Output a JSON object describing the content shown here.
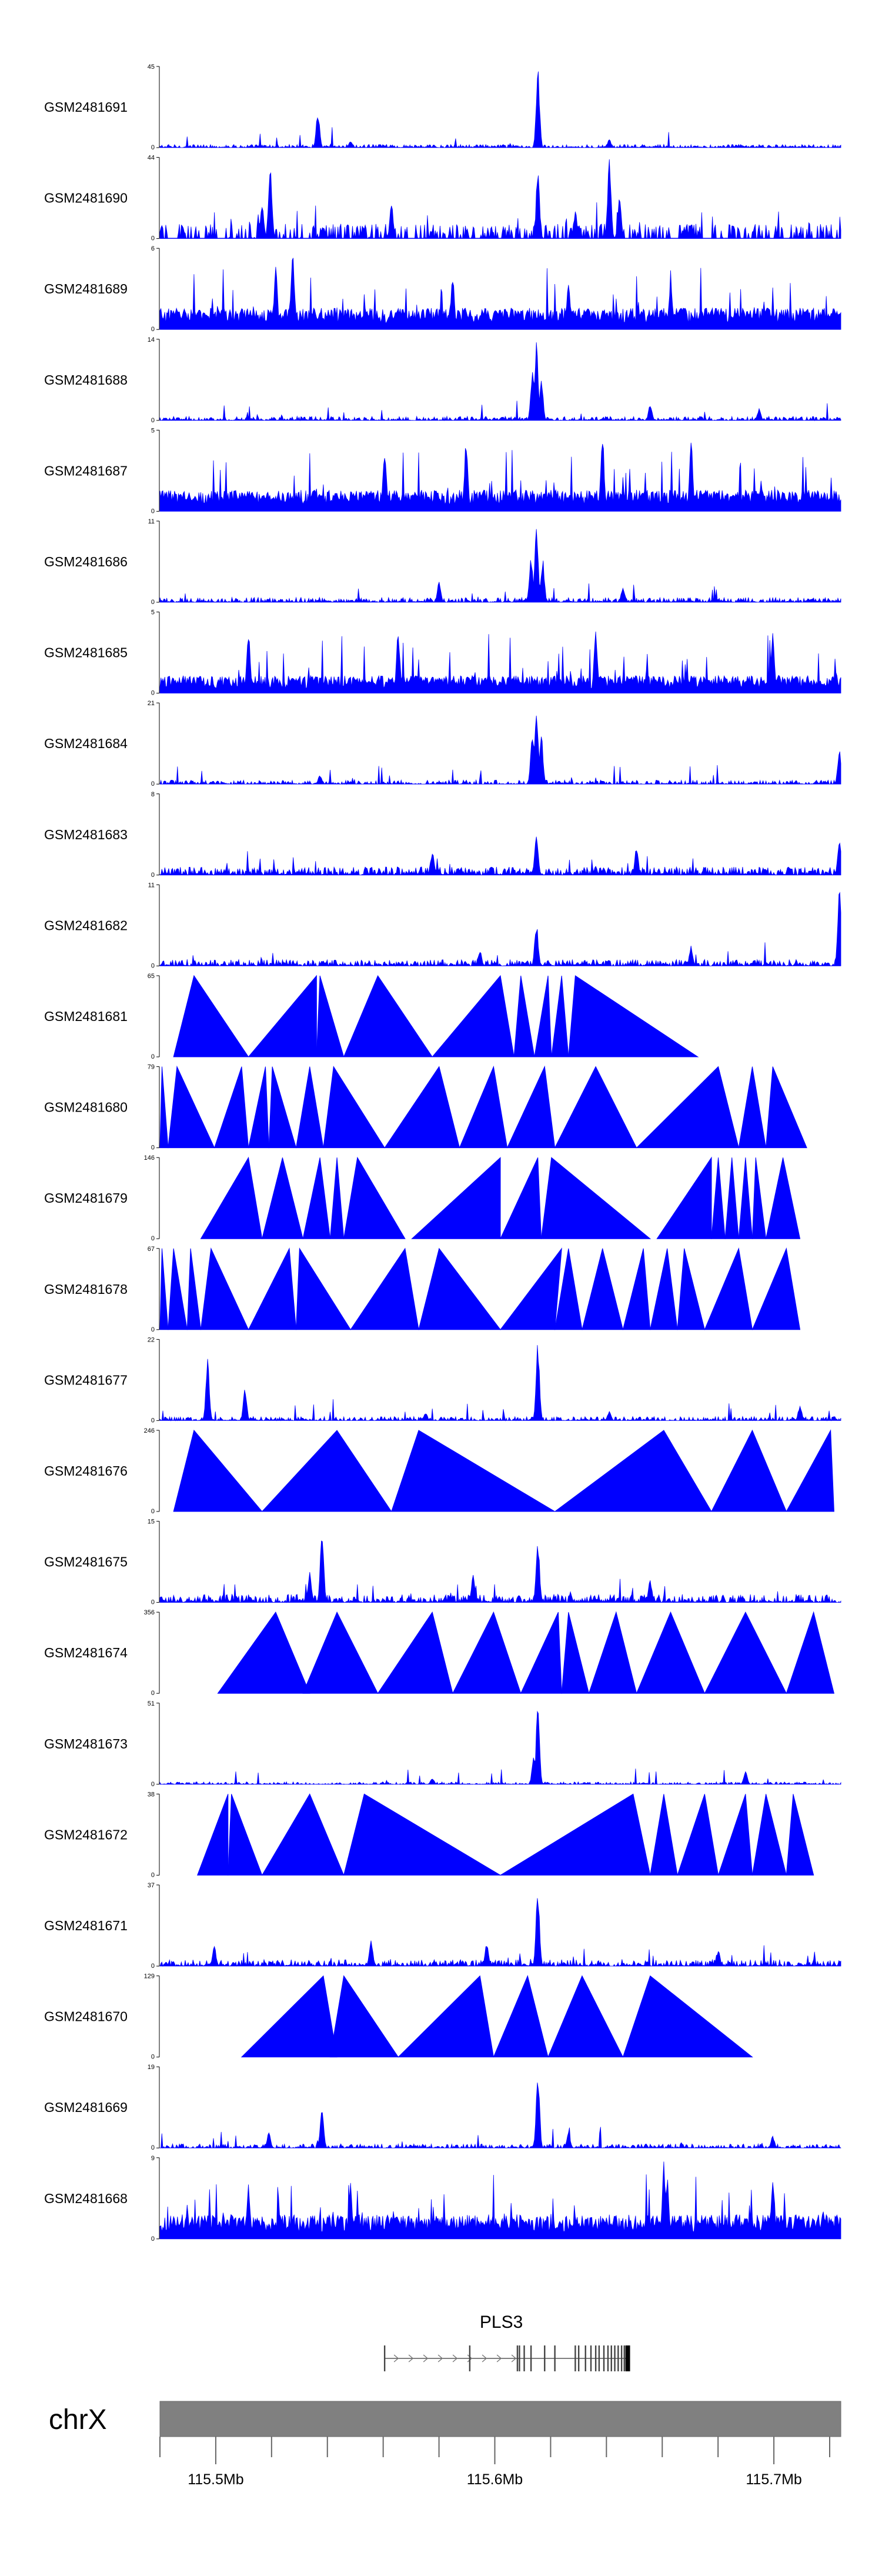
{
  "chart_data": {
    "type": "area",
    "title": "",
    "chromosome": "chrX",
    "x_range_mb": [
      115.48,
      115.724
    ],
    "track_color": "#0000ff",
    "tracks": [
      {
        "name": "GSM2481691",
        "ymin": "0",
        "ymax": "45",
        "style": "signal",
        "baseline": 0.04,
        "variability": 1.2,
        "peaks": [
          [
            0.232,
            0.45
          ],
          [
            0.555,
            1.0
          ],
          [
            0.28,
            0.08
          ],
          [
            0.66,
            0.1
          ]
        ]
      },
      {
        "name": "GSM2481690",
        "ymin": "0",
        "ymax": "44",
        "style": "sparse",
        "baseline": 0.18,
        "variability": 0.9,
        "peaks": [
          [
            0.162,
            0.95
          ],
          [
            0.15,
            0.5
          ],
          [
            0.555,
            0.85
          ],
          [
            0.66,
            0.98
          ],
          [
            0.675,
            0.55
          ],
          [
            0.34,
            0.45
          ],
          [
            0.61,
            0.35
          ],
          [
            0.78,
            0.2
          ]
        ]
      },
      {
        "name": "GSM2481689",
        "ymin": "0",
        "ymax": "6",
        "style": "dense",
        "baseline": 0.22,
        "variability": 1.6,
        "peaks": [
          [
            0.195,
            1.0
          ],
          [
            0.17,
            0.8
          ],
          [
            0.43,
            0.7
          ],
          [
            0.6,
            0.7
          ],
          [
            0.75,
            0.65
          ]
        ]
      },
      {
        "name": "GSM2481688",
        "ymin": "0",
        "ymax": "14",
        "style": "signal",
        "baseline": 0.05,
        "variability": 1.1,
        "peaks": [
          [
            0.553,
            1.0
          ],
          [
            0.547,
            0.6
          ],
          [
            0.56,
            0.55
          ],
          [
            0.72,
            0.2
          ],
          [
            0.88,
            0.15
          ]
        ]
      },
      {
        "name": "GSM2481687",
        "ymin": "0",
        "ymax": "5",
        "style": "dense",
        "baseline": 0.22,
        "variability": 1.7,
        "peaks": [
          [
            0.45,
            0.95
          ],
          [
            0.65,
            0.95
          ],
          [
            0.78,
            0.9
          ],
          [
            0.33,
            0.8
          ]
        ]
      },
      {
        "name": "GSM2481686",
        "ymin": "0",
        "ymax": "11",
        "style": "signal",
        "baseline": 0.06,
        "variability": 1.2,
        "peaks": [
          [
            0.553,
            1.0
          ],
          [
            0.545,
            0.6
          ],
          [
            0.562,
            0.55
          ],
          [
            0.41,
            0.25
          ],
          [
            0.68,
            0.2
          ]
        ]
      },
      {
        "name": "GSM2481685",
        "ymin": "0",
        "ymax": "5",
        "style": "dense",
        "baseline": 0.18,
        "variability": 1.6,
        "peaks": [
          [
            0.13,
            0.85
          ],
          [
            0.35,
            0.8
          ],
          [
            0.64,
            0.85
          ],
          [
            0.9,
            0.75
          ]
        ]
      },
      {
        "name": "GSM2481684",
        "ymin": "0",
        "ymax": "21",
        "style": "signal",
        "baseline": 0.05,
        "variability": 1.0,
        "peaks": [
          [
            0.553,
            1.0
          ],
          [
            0.547,
            0.7
          ],
          [
            0.56,
            0.65
          ],
          [
            0.235,
            0.12
          ],
          [
            0.998,
            0.45
          ]
        ]
      },
      {
        "name": "GSM2481683",
        "ymin": "0",
        "ymax": "8",
        "style": "signal",
        "baseline": 0.1,
        "variability": 1.4,
        "peaks": [
          [
            0.553,
            0.5
          ],
          [
            0.998,
            0.45
          ],
          [
            0.7,
            0.35
          ],
          [
            0.4,
            0.3
          ]
        ]
      },
      {
        "name": "GSM2481682",
        "ymin": "0",
        "ymax": "11",
        "style": "signal",
        "baseline": 0.08,
        "variability": 1.3,
        "peaks": [
          [
            0.553,
            0.55
          ],
          [
            0.998,
            0.95
          ],
          [
            0.47,
            0.2
          ],
          [
            0.78,
            0.25
          ]
        ]
      },
      {
        "name": "GSM2481681",
        "ymin": "0",
        "ymax": "65",
        "style": "triangles",
        "peaks": [
          [
            0.02,
            0.13,
            0.05
          ],
          [
            0.13,
            0.23,
            0.23
          ],
          [
            0.23,
            0.27,
            0.235
          ],
          [
            0.27,
            0.4,
            0.32
          ],
          [
            0.4,
            0.52,
            0.5
          ],
          [
            0.52,
            0.55,
            0.53
          ],
          [
            0.55,
            0.575,
            0.57
          ],
          [
            0.575,
            0.6,
            0.59
          ],
          [
            0.6,
            0.79,
            0.61
          ]
        ]
      },
      {
        "name": "GSM2481680",
        "ymin": "0",
        "ymax": "79",
        "style": "triangles",
        "peaks": [
          [
            0.0,
            0.012,
            0.003
          ],
          [
            0.012,
            0.08,
            0.025
          ],
          [
            0.08,
            0.13,
            0.12
          ],
          [
            0.13,
            0.16,
            0.155
          ],
          [
            0.16,
            0.2,
            0.165
          ],
          [
            0.2,
            0.24,
            0.22
          ],
          [
            0.24,
            0.33,
            0.255
          ],
          [
            0.33,
            0.44,
            0.41
          ],
          [
            0.44,
            0.51,
            0.49
          ],
          [
            0.51,
            0.58,
            0.565
          ],
          [
            0.58,
            0.7,
            0.64
          ],
          [
            0.7,
            0.85,
            0.82
          ],
          [
            0.85,
            0.89,
            0.87
          ],
          [
            0.89,
            0.95,
            0.9
          ]
        ]
      },
      {
        "name": "GSM2481679",
        "ymin": "0",
        "ymax": "146",
        "style": "triangles",
        "peaks": [
          [
            0.06,
            0.15,
            0.13
          ],
          [
            0.15,
            0.21,
            0.18
          ],
          [
            0.21,
            0.25,
            0.235
          ],
          [
            0.25,
            0.27,
            0.26
          ],
          [
            0.27,
            0.36,
            0.29
          ],
          [
            0.37,
            0.5,
            0.5
          ],
          [
            0.5,
            0.56,
            0.555
          ],
          [
            0.56,
            0.72,
            0.575
          ],
          [
            0.73,
            0.81,
            0.81
          ],
          [
            0.81,
            0.83,
            0.82
          ],
          [
            0.83,
            0.85,
            0.84
          ],
          [
            0.85,
            0.87,
            0.86
          ],
          [
            0.87,
            0.89,
            0.875
          ],
          [
            0.89,
            0.94,
            0.915
          ]
        ]
      },
      {
        "name": "GSM2481678",
        "ymin": "0",
        "ymax": "67",
        "style": "triangles",
        "peaks": [
          [
            0.0,
            0.012,
            0.003
          ],
          [
            0.012,
            0.04,
            0.02
          ],
          [
            0.04,
            0.06,
            0.045
          ],
          [
            0.06,
            0.13,
            0.075
          ],
          [
            0.13,
            0.2,
            0.19
          ],
          [
            0.2,
            0.28,
            0.205
          ],
          [
            0.28,
            0.38,
            0.36
          ],
          [
            0.38,
            0.5,
            0.41
          ],
          [
            0.5,
            0.58,
            0.59
          ],
          [
            0.58,
            0.62,
            0.6
          ],
          [
            0.62,
            0.68,
            0.65
          ],
          [
            0.68,
            0.72,
            0.71
          ],
          [
            0.72,
            0.76,
            0.745
          ],
          [
            0.76,
            0.8,
            0.77
          ],
          [
            0.8,
            0.87,
            0.85
          ],
          [
            0.87,
            0.94,
            0.92
          ]
        ]
      },
      {
        "name": "GSM2481677",
        "ymin": "0",
        "ymax": "22",
        "style": "signal",
        "baseline": 0.05,
        "variability": 1.0,
        "peaks": [
          [
            0.07,
            0.82
          ],
          [
            0.125,
            0.4
          ],
          [
            0.555,
            0.98
          ],
          [
            0.66,
            0.12
          ],
          [
            0.94,
            0.2
          ],
          [
            0.39,
            0.1
          ]
        ]
      },
      {
        "name": "GSM2481676",
        "ymin": "0",
        "ymax": "246",
        "style": "triangles",
        "peaks": [
          [
            0.02,
            0.15,
            0.05
          ],
          [
            0.15,
            0.34,
            0.26
          ],
          [
            0.34,
            0.58,
            0.38
          ],
          [
            0.58,
            0.81,
            0.74
          ],
          [
            0.81,
            0.92,
            0.87
          ],
          [
            0.92,
            0.99,
            0.985
          ]
        ]
      },
      {
        "name": "GSM2481675",
        "ymin": "0",
        "ymax": "15",
        "style": "signal",
        "baseline": 0.1,
        "variability": 1.3,
        "peaks": [
          [
            0.238,
            0.92
          ],
          [
            0.555,
            0.8
          ],
          [
            0.22,
            0.4
          ],
          [
            0.46,
            0.35
          ],
          [
            0.72,
            0.3
          ]
        ]
      },
      {
        "name": "GSM2481674",
        "ymin": "0",
        "ymax": "356",
        "style": "triangles",
        "peaks": [
          [
            0.085,
            0.22,
            0.17
          ],
          [
            0.21,
            0.32,
            0.26
          ],
          [
            0.32,
            0.43,
            0.4
          ],
          [
            0.43,
            0.53,
            0.49
          ],
          [
            0.53,
            0.59,
            0.585
          ],
          [
            0.59,
            0.63,
            0.6
          ],
          [
            0.63,
            0.7,
            0.67
          ],
          [
            0.7,
            0.8,
            0.75
          ],
          [
            0.8,
            0.92,
            0.86
          ],
          [
            0.92,
            0.99,
            0.96
          ]
        ]
      },
      {
        "name": "GSM2481673",
        "ymin": "0",
        "ymax": "51",
        "style": "signal",
        "baseline": 0.03,
        "variability": 0.9,
        "peaks": [
          [
            0.555,
            1.0
          ],
          [
            0.549,
            0.35
          ],
          [
            0.86,
            0.18
          ],
          [
            0.4,
            0.08
          ]
        ]
      },
      {
        "name": "GSM2481672",
        "ymin": "0",
        "ymax": "38",
        "style": "triangles",
        "peaks": [
          [
            0.055,
            0.1,
            0.1
          ],
          [
            0.1,
            0.15,
            0.105
          ],
          [
            0.15,
            0.27,
            0.22
          ],
          [
            0.27,
            0.5,
            0.3
          ],
          [
            0.5,
            0.72,
            0.695
          ],
          [
            0.72,
            0.76,
            0.74
          ],
          [
            0.76,
            0.82,
            0.8
          ],
          [
            0.82,
            0.87,
            0.86
          ],
          [
            0.87,
            0.92,
            0.89
          ],
          [
            0.92,
            0.96,
            0.93
          ]
        ]
      },
      {
        "name": "GSM2481671",
        "ymin": "0",
        "ymax": "37",
        "style": "signal",
        "baseline": 0.08,
        "variability": 1.2,
        "peaks": [
          [
            0.555,
            1.0
          ],
          [
            0.31,
            0.35
          ],
          [
            0.48,
            0.3
          ],
          [
            0.82,
            0.2
          ],
          [
            0.08,
            0.25
          ]
        ]
      },
      {
        "name": "GSM2481670",
        "ymin": "0",
        "ymax": "129",
        "style": "triangles",
        "peaks": [
          [
            0.12,
            0.26,
            0.24
          ],
          [
            0.25,
            0.35,
            0.27
          ],
          [
            0.35,
            0.49,
            0.47
          ],
          [
            0.49,
            0.57,
            0.54
          ],
          [
            0.57,
            0.68,
            0.62
          ],
          [
            0.68,
            0.87,
            0.72
          ]
        ]
      },
      {
        "name": "GSM2481669",
        "ymin": "0",
        "ymax": "19",
        "style": "signal",
        "baseline": 0.05,
        "variability": 1.1,
        "peaks": [
          [
            0.238,
            0.55
          ],
          [
            0.555,
            1.0
          ],
          [
            0.16,
            0.2
          ],
          [
            0.6,
            0.2
          ],
          [
            0.9,
            0.15
          ]
        ]
      },
      {
        "name": "GSM2481668",
        "ymin": "0",
        "ymax": "9",
        "style": "dense",
        "baseline": 0.25,
        "variability": 1.5,
        "peaks": [
          [
            0.74,
            0.98
          ],
          [
            0.745,
            0.82
          ],
          [
            0.13,
            0.72
          ],
          [
            0.28,
            0.7
          ],
          [
            0.9,
            0.7
          ]
        ]
      }
    ],
    "gene": {
      "name": "PLS3",
      "start_frac": 0.33,
      "end_frac": 0.69,
      "exons_frac": [
        0.33,
        0.455,
        0.525,
        0.528,
        0.535,
        0.545,
        0.565,
        0.58,
        0.61,
        0.615,
        0.625,
        0.633,
        0.64,
        0.645,
        0.652,
        0.658,
        0.663,
        0.668,
        0.673,
        0.678,
        0.682,
        0.687
      ]
    },
    "axis": {
      "ticks_mb": [
        115.48,
        115.5,
        115.52,
        115.54,
        115.56,
        115.58,
        115.6,
        115.62,
        115.64,
        115.66,
        115.68,
        115.7,
        115.72
      ],
      "labels": [
        {
          "mb": 115.5,
          "text": "115.5Mb"
        },
        {
          "mb": 115.6,
          "text": "115.6Mb"
        },
        {
          "mb": 115.7,
          "text": "115.7Mb"
        }
      ]
    }
  }
}
